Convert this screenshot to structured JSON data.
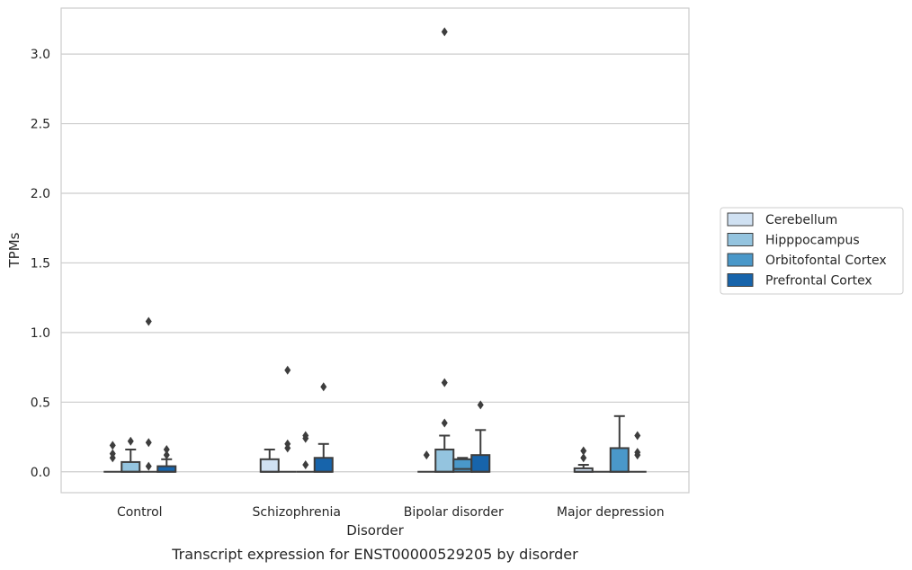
{
  "chart_data": {
    "type": "box",
    "caption": "Transcript expression for ENST00000529205 by disorder",
    "xlabel": "Disorder",
    "ylabel": "TPMs",
    "ylim": [
      -0.15,
      3.33
    ],
    "yticks": [
      0.0,
      0.5,
      1.0,
      1.5,
      2.0,
      2.5,
      3.0
    ],
    "ytick_labels": [
      "0.0",
      "0.5",
      "1.0",
      "1.5",
      "2.0",
      "2.5",
      "3.0"
    ],
    "grid": "horizontal",
    "legend_position": "right",
    "categories": [
      "Control",
      "Schizophrenia",
      "Bipolar disorder",
      "Major depression"
    ],
    "series": [
      {
        "name": "Cerebellum",
        "color": "#d0e1f2",
        "boxes": [
          {
            "q1": 0,
            "median": 0,
            "q3": 0,
            "whisker_low": 0,
            "whisker_high": 0,
            "outliers": [
              0.1,
              0.13,
              0.19
            ]
          },
          {
            "q1": 0,
            "median": 0,
            "q3": 0.09,
            "whisker_low": 0,
            "whisker_high": 0.16,
            "outliers": []
          },
          {
            "q1": 0,
            "median": 0,
            "q3": 0,
            "whisker_low": 0,
            "whisker_high": 0,
            "outliers": [
              0.12
            ]
          },
          {
            "q1": 0,
            "median": 0,
            "q3": 0.025,
            "whisker_low": 0,
            "whisker_high": 0.05,
            "outliers": [
              0.1,
              0.15
            ]
          }
        ]
      },
      {
        "name": "Hipppocampus",
        "color": "#94c4df",
        "boxes": [
          {
            "q1": 0,
            "median": 0,
            "q3": 0.07,
            "whisker_low": 0,
            "whisker_high": 0.16,
            "outliers": [
              0.22
            ]
          },
          {
            "q1": 0,
            "median": 0,
            "q3": 0,
            "whisker_low": 0,
            "whisker_high": 0,
            "outliers": [
              0.17,
              0.2,
              0.73
            ]
          },
          {
            "q1": 0,
            "median": 0,
            "q3": 0.16,
            "whisker_low": 0,
            "whisker_high": 0.26,
            "outliers": [
              0.35,
              0.64,
              3.16
            ]
          },
          {
            "q1": 0,
            "median": 0,
            "q3": 0,
            "whisker_low": 0,
            "whisker_high": 0,
            "outliers": []
          }
        ]
      },
      {
        "name": "Orbitofontal Cortex",
        "color": "#4a98c9",
        "boxes": [
          {
            "q1": 0,
            "median": 0,
            "q3": 0,
            "whisker_low": 0,
            "whisker_high": 0,
            "outliers": [
              0.04,
              0.21,
              1.08
            ]
          },
          {
            "q1": 0,
            "median": 0,
            "q3": 0,
            "whisker_low": 0,
            "whisker_high": 0,
            "outliers": [
              0.05,
              0.24,
              0.26
            ]
          },
          {
            "q1": 0,
            "median": 0.02,
            "q3": 0.09,
            "whisker_low": 0,
            "whisker_high": 0.1,
            "outliers": []
          },
          {
            "q1": 0,
            "median": 0,
            "q3": 0.17,
            "whisker_low": 0,
            "whisker_high": 0.4,
            "outliers": []
          }
        ]
      },
      {
        "name": "Prefrontal Cortex",
        "color": "#1764ab",
        "boxes": [
          {
            "q1": 0,
            "median": 0,
            "q3": 0.04,
            "whisker_low": 0,
            "whisker_high": 0.09,
            "outliers": [
              0.12,
              0.16
            ]
          },
          {
            "q1": 0,
            "median": 0,
            "q3": 0.1,
            "whisker_low": 0,
            "whisker_high": 0.2,
            "outliers": [
              0.61
            ]
          },
          {
            "q1": 0,
            "median": 0,
            "q3": 0.12,
            "whisker_low": 0,
            "whisker_high": 0.3,
            "outliers": [
              0.48
            ]
          },
          {
            "q1": 0,
            "median": 0,
            "q3": 0,
            "whisker_low": 0,
            "whisker_high": 0,
            "outliers": [
              0.12,
              0.14,
              0.26
            ]
          }
        ]
      }
    ]
  }
}
